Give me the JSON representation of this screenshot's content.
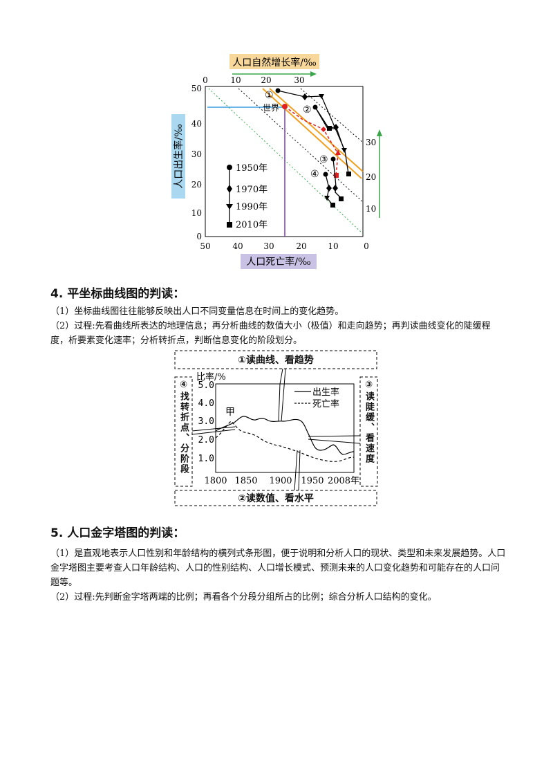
{
  "figure1": {
    "top_axis_label": "人口自然增长率/‰",
    "top_ticks": [
      "0",
      "10",
      "20",
      "30"
    ],
    "left_axis_label": "人口出生率/‰",
    "left_ticks": [
      "0",
      "10",
      "20",
      "30",
      "40",
      "50"
    ],
    "bottom_axis_label": "人口死亡率/‰",
    "bottom_ticks": [
      "50",
      "40",
      "30",
      "20",
      "10",
      "0"
    ],
    "right_ticks": [
      "10",
      "20",
      "30"
    ],
    "world_label": "世界",
    "region_markers": [
      "①",
      "②",
      "③",
      "④"
    ],
    "legend": [
      {
        "symbol": "circle",
        "label": "1950年"
      },
      {
        "symbol": "diamond",
        "label": "1970年"
      },
      {
        "symbol": "triangle",
        "label": "1990年"
      },
      {
        "symbol": "square",
        "label": "2010年"
      }
    ],
    "colors": {
      "top_label_bg": "#f8d79b",
      "left_label_bg": "#a9d8f0",
      "bottom_label_bg": "#c9c2e4",
      "green_arrow": "#3aa64a",
      "orange_line": "#f0a020",
      "world_red": "#e02020",
      "blue_guide": "#3a9ee0",
      "purple_guide": "#7a3ab0"
    }
  },
  "section4": {
    "heading": "4. 平坐标曲线图的判读：",
    "p1": "（1）坐标曲线图往往能够反映出人口不同变量信息在时间上的变化趋势。",
    "p2": "（2）过程:先看曲线所表达的地理信息；再分析曲线的数值大小（极值）和走向趋势；再判读曲线变化的陡缓程度，析要素变化速率；分析转折点，判断信息变化的阶段划分。"
  },
  "figure2": {
    "box_top": "①读曲线、看趋势",
    "box_bottom": "②读数值、看水平",
    "box_left": "④找转折点、分阶段",
    "box_right": "③读陡缓、看速度",
    "y_label": "比率/%",
    "y_ticks": [
      "1.0",
      "2.0",
      "3.0",
      "4.0",
      "5.0"
    ],
    "x_ticks": [
      "1800",
      "1850",
      "1900",
      "1950",
      "2008年"
    ],
    "legend_birth": "出生率",
    "legend_death": "死亡率",
    "annotation": "甲"
  },
  "section5": {
    "heading": "5. 人口金字塔图的判读：",
    "p1": "（1）是直观地表示人口性别和年龄结构的横列式条形图，便于说明和分析人口的现状、类型和未来发展趋势。人口金字塔图主要考查人口年龄结构、人口的性别结构、人口增长模式、预测未来的人口变化趋势和可能存在的人口问题等。",
    "p2": "（2）过程:先判断金字塔两端的比例；再看各个分段分组所占的比例；综合分析人口结构的变化。"
  }
}
